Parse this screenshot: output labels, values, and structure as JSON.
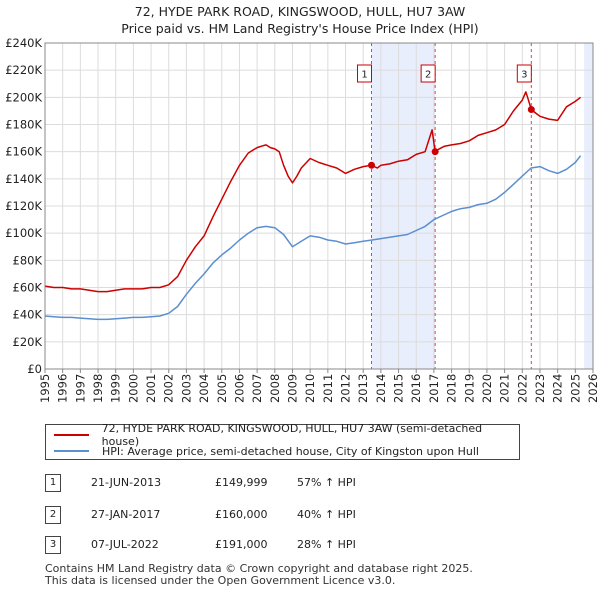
{
  "title_line1": "72, HYDE PARK ROAD, KINGSWOOD, HULL, HU7 3AW",
  "title_line2": "Price paid vs. HM Land Registry's House Price Index (HPI)",
  "colors": {
    "property": "#cc0000",
    "hpi": "#5b8fd0",
    "band": "#e8eefb",
    "vline": "#dd4444",
    "grid": "#dcdcdc"
  },
  "chart_data": {
    "type": "line",
    "xlim": [
      1995,
      2026
    ],
    "ylim": [
      0,
      240000
    ],
    "y_ticks": [
      0,
      20000,
      40000,
      60000,
      80000,
      100000,
      120000,
      140000,
      160000,
      180000,
      200000,
      220000,
      240000
    ],
    "y_tick_labels": [
      "£0",
      "£20K",
      "£40K",
      "£60K",
      "£80K",
      "£100K",
      "£120K",
      "£140K",
      "£160K",
      "£180K",
      "£200K",
      "£220K",
      "£240K"
    ],
    "x_ticks": [
      1995,
      1996,
      1997,
      1998,
      1999,
      2000,
      2001,
      2002,
      2003,
      2004,
      2005,
      2006,
      2007,
      2008,
      2009,
      2010,
      2011,
      2012,
      2013,
      2014,
      2015,
      2016,
      2017,
      2018,
      2019,
      2020,
      2021,
      2022,
      2023,
      2024,
      2025,
      2026
    ],
    "x_tick_labels": [
      "1995",
      "1996",
      "1997",
      "1998",
      "1999",
      "2000",
      "2001",
      "2002",
      "2003",
      "2004",
      "2005",
      "2006",
      "2007",
      "2008",
      "2009",
      "2010",
      "2011",
      "2012",
      "2013",
      "2014",
      "2015",
      "2016",
      "2017",
      "2018",
      "2019",
      "2020",
      "2021",
      "2022",
      "2023",
      "2024",
      "2025",
      "2026"
    ],
    "shaded_bands": [
      [
        2013.47,
        2017.07
      ],
      [
        2025.5,
        2026
      ]
    ],
    "series": [
      {
        "name": "72, HYDE PARK ROAD, KINGSWOOD, HULL, HU7 3AW (semi-detached house)",
        "x": [
          1995,
          1995.5,
          1996,
          1996.5,
          1997,
          1997.5,
          1998,
          1998.5,
          1999,
          1999.5,
          2000,
          2000.5,
          2001,
          2001.5,
          2002,
          2002.5,
          2003,
          2003.5,
          2004,
          2004.5,
          2005,
          2005.5,
          2006,
          2006.5,
          2007,
          2007.25,
          2007.5,
          2007.75,
          2008,
          2008.25,
          2008.5,
          2008.75,
          2009,
          2009.25,
          2009.5,
          2010,
          2010.5,
          2011,
          2011.5,
          2012,
          2012.5,
          2013,
          2013.47,
          2013.8,
          2014,
          2014.5,
          2015,
          2015.5,
          2016,
          2016.5,
          2016.9,
          2017.07,
          2017.3,
          2017.6,
          2018,
          2018.5,
          2019,
          2019.5,
          2020,
          2020.5,
          2021,
          2021.5,
          2022,
          2022.2,
          2022.3,
          2022.51,
          2022.8,
          2023,
          2023.5,
          2024,
          2024.5,
          2025,
          2025.3
        ],
        "y": [
          61000,
          60000,
          60000,
          59000,
          59000,
          58000,
          57000,
          57000,
          58000,
          59000,
          59000,
          59000,
          60000,
          60000,
          62000,
          68000,
          80000,
          90000,
          98000,
          112000,
          125000,
          138000,
          150000,
          159000,
          163000,
          164000,
          165000,
          163000,
          162000,
          160000,
          150000,
          142000,
          137000,
          142000,
          148000,
          155000,
          152000,
          150000,
          148000,
          144000,
          147000,
          149000,
          149999,
          148000,
          150000,
          151000,
          153000,
          154000,
          158000,
          160000,
          176000,
          160000,
          162000,
          164000,
          165000,
          166000,
          168000,
          172000,
          174000,
          176000,
          180000,
          190000,
          198000,
          204000,
          200000,
          191000,
          188000,
          186000,
          184000,
          183000,
          193000,
          197000,
          200000
        ]
      },
      {
        "name": "HPI: Average price, semi-detached house, City of Kingston upon Hull",
        "x": [
          1995,
          1995.5,
          1996,
          1996.5,
          1997,
          1997.5,
          1998,
          1998.5,
          1999,
          1999.5,
          2000,
          2000.5,
          2001,
          2001.5,
          2002,
          2002.5,
          2003,
          2003.5,
          2004,
          2004.5,
          2005,
          2005.5,
          2006,
          2006.5,
          2007,
          2007.5,
          2008,
          2008.5,
          2009,
          2009.5,
          2010,
          2010.5,
          2011,
          2011.5,
          2012,
          2012.5,
          2013,
          2013.5,
          2014,
          2014.5,
          2015,
          2015.5,
          2016,
          2016.5,
          2017,
          2017.5,
          2018,
          2018.5,
          2019,
          2019.5,
          2020,
          2020.5,
          2021,
          2021.5,
          2022,
          2022.5,
          2023,
          2023.5,
          2024,
          2024.5,
          2025,
          2025.3
        ],
        "y": [
          39000,
          38500,
          38000,
          38000,
          37500,
          37000,
          36500,
          36500,
          37000,
          37500,
          38000,
          38000,
          38500,
          39000,
          41000,
          46000,
          55000,
          63000,
          70000,
          78000,
          84000,
          89000,
          95000,
          100000,
          104000,
          105000,
          104000,
          99000,
          90000,
          94000,
          98000,
          97000,
          95000,
          94000,
          92000,
          93000,
          94000,
          95000,
          96000,
          97000,
          98000,
          99000,
          102000,
          105000,
          110000,
          113000,
          116000,
          118000,
          119000,
          121000,
          122000,
          125000,
          130000,
          136000,
          142000,
          148000,
          149000,
          146000,
          144000,
          147000,
          152000,
          157000
        ]
      }
    ],
    "sales": [
      {
        "label": "1",
        "x": 2013.47,
        "y": 149999
      },
      {
        "label": "2",
        "x": 2017.07,
        "y": 160000
      },
      {
        "label": "3",
        "x": 2022.51,
        "y": 191000
      }
    ]
  },
  "legend": {
    "property_label": "72, HYDE PARK ROAD, KINGSWOOD, HULL, HU7 3AW (semi-detached house)",
    "hpi_label": "HPI: Average price, semi-detached house, City of Kingston upon Hull"
  },
  "transactions": [
    {
      "num": "1",
      "date": "21-JUN-2013",
      "price": "£149,999",
      "hpi": "57% ↑ HPI"
    },
    {
      "num": "2",
      "date": "27-JAN-2017",
      "price": "£160,000",
      "hpi": "40% ↑ HPI"
    },
    {
      "num": "3",
      "date": "07-JUL-2022",
      "price": "£191,000",
      "hpi": "28% ↑ HPI"
    }
  ],
  "footer_line1": "Contains HM Land Registry data © Crown copyright and database right 2025.",
  "footer_line2": "This data is licensed under the Open Government Licence v3.0."
}
